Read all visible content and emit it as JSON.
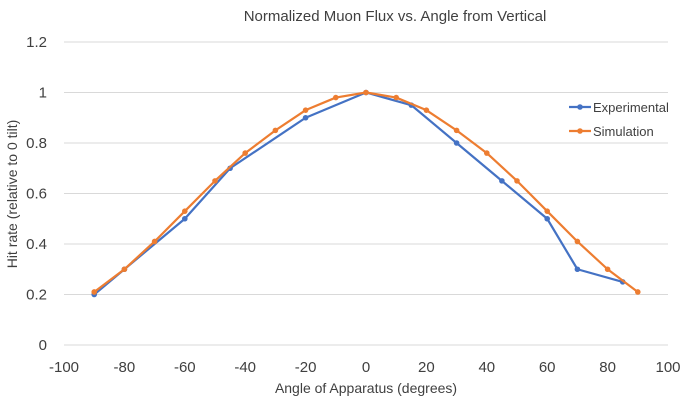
{
  "chart_data": {
    "type": "line",
    "title": "Normalized Muon Flux vs. Angle from Vertical",
    "xlabel": "Angle of Apparatus (degrees)",
    "ylabel": "Hit rate (relative to 0 tilt)",
    "xlim": [
      -100,
      100
    ],
    "ylim": [
      0,
      1.2
    ],
    "xticks": [
      "-100",
      "-80",
      "-60",
      "-40",
      "-20",
      "0",
      "20",
      "40",
      "60",
      "80",
      "100"
    ],
    "yticks": [
      "0",
      "0.2",
      "0.4",
      "0.6",
      "0.8",
      "1",
      "1.2"
    ],
    "grid": true,
    "legend_position": "right",
    "series": [
      {
        "name": "Experimental",
        "color": "#4472C4",
        "x": [
          -90,
          -80,
          -60,
          -45,
          -20,
          0,
          15,
          30,
          45,
          60,
          70,
          85
        ],
        "y": [
          0.2,
          0.3,
          0.5,
          0.7,
          0.9,
          1.0,
          0.95,
          0.8,
          0.65,
          0.5,
          0.3,
          0.25
        ]
      },
      {
        "name": "Simulation",
        "color": "#ED7D31",
        "x": [
          -90,
          -80,
          -70,
          -60,
          -50,
          -40,
          -30,
          -20,
          -10,
          0,
          10,
          20,
          30,
          40,
          50,
          60,
          70,
          80,
          90
        ],
        "y": [
          0.21,
          0.3,
          0.41,
          0.53,
          0.65,
          0.76,
          0.85,
          0.93,
          0.98,
          1.0,
          0.98,
          0.93,
          0.85,
          0.76,
          0.65,
          0.53,
          0.41,
          0.3,
          0.21
        ]
      }
    ]
  }
}
